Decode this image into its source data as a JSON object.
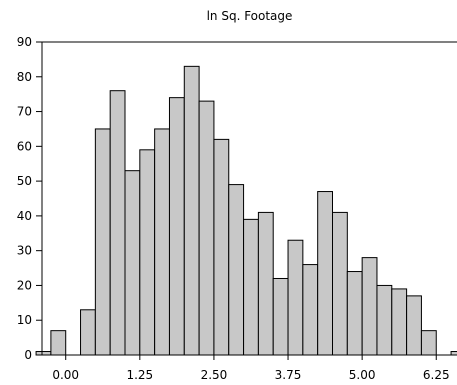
{
  "chart_data": {
    "type": "bar",
    "title": "ln Sq. Footage",
    "xlabel": "",
    "ylabel": "",
    "ylim": [
      0,
      90
    ],
    "y_ticks": [
      0,
      10,
      20,
      30,
      40,
      50,
      60,
      70,
      80,
      90
    ],
    "x_ticks": [
      "0.00",
      "1.25",
      "2.50",
      "3.75",
      "5.00",
      "6.25"
    ],
    "bins": [
      -0.375,
      -0.125,
      0.125,
      0.375,
      0.625,
      0.875,
      1.125,
      1.375,
      1.625,
      1.875,
      2.125,
      2.375,
      2.625,
      2.875,
      3.125,
      3.375,
      3.625,
      3.875,
      4.125,
      4.375,
      4.625,
      4.875,
      5.125,
      5.375,
      5.625,
      5.875,
      6.125,
      6.375,
      6.625
    ],
    "values": [
      1,
      7,
      0,
      13,
      65,
      76,
      53,
      59,
      65,
      74,
      83,
      73,
      62,
      49,
      39,
      41,
      22,
      33,
      26,
      47,
      41,
      24,
      28,
      20,
      19,
      17,
      7,
      0,
      1
    ],
    "grid": false,
    "bar_color": "#c8c8c8",
    "edge_color": "#000000"
  }
}
